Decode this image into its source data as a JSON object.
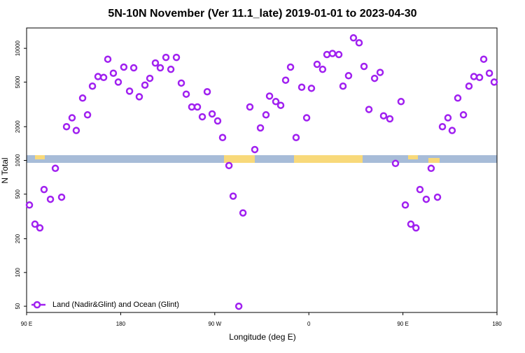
{
  "chart_data": {
    "type": "scatter",
    "title": "5N-10N November (Ver 11.1_late)   2019-01-01 to 2023-04-30",
    "x_label": "Longitude (deg E)",
    "y_label": "N Total",
    "log_y": true,
    "legend_position": "lower left",
    "xlim": [
      90,
      540
    ],
    "ylim": [
      44,
      15200
    ],
    "xticks": [
      {
        "value": 90,
        "label": "90 E"
      },
      180,
      {
        "value": 270,
        "label": "90 W"
      },
      {
        "value": 360,
        "label": "0"
      },
      {
        "value": 450,
        "label": "90 E"
      },
      {
        "value": 540,
        "label": "180"
      }
    ],
    "yticks": [
      50,
      100,
      200,
      500,
      1000,
      2000,
      5000,
      10000
    ],
    "series": [
      {
        "name": "Land (Nadir&Glint) and Ocean (Glint)",
        "color": "#a020f0",
        "x": [
          92.7,
          98,
          102.7,
          106.7,
          112.8,
          117.5,
          123.5,
          128.2,
          133.5,
          137.5,
          143.6,
          148.3,
          153,
          158.3,
          163.7,
          167.7,
          173,
          177.7,
          183,
          188.5,
          192.5,
          197.8,
          203.2,
          207.9,
          213.2,
          217.9,
          223.3,
          228,
          233.3,
          238,
          242.7,
          248,
          253.4,
          258.1,
          262.8,
          267.5,
          272.8,
          277.5,
          283.6,
          287.6,
          293,
          297,
          303.6,
          308.3,
          313.7,
          319,
          322.4,
          328.4,
          333.1,
          337.8,
          342.5,
          347.8,
          353.2,
          357.9,
          362.5,
          367.9,
          373.2,
          377.3,
          382.6,
          388.7,
          392.7,
          398,
          402.7,
          408.1,
          412.8,
          417.5,
          422.9,
          428.2,
          431.5,
          437.5,
          442.9,
          448.2,
          452.3,
          457.6,
          462.5,
          466.3,
          472.3,
          477,
          483.1,
          487.8,
          493.1,
          497.1,
          502.5,
          507.9,
          513.2,
          517.9,
          523.3,
          527.3,
          532.7,
          537.3
        ],
        "values": [
          400,
          270,
          250,
          550,
          450,
          850,
          470,
          2000,
          2400,
          1850,
          3600,
          2550,
          4600,
          5600,
          5500,
          8000,
          6000,
          5000,
          6800,
          4150,
          6700,
          3700,
          4700,
          5400,
          7400,
          6700,
          8300,
          6500,
          8300,
          4900,
          3900,
          3000,
          3000,
          2450,
          4100,
          2600,
          2250,
          1600,
          900,
          480,
          50,
          340,
          3000,
          1250,
          1950,
          2550,
          3750,
          3350,
          3100,
          5200,
          6800,
          1600,
          4500,
          2400,
          4400,
          7200,
          6500,
          8800,
          9000,
          8800,
          4600,
          5700,
          12400,
          11200,
          6900,
          2850,
          5400,
          6100,
          2500,
          2350,
          940,
          3350,
          400,
          270,
          250,
          550,
          450,
          850,
          470,
          2000,
          2400,
          1850,
          3600,
          2550,
          4600,
          5600,
          5500,
          8000,
          6000,
          5000
        ]
      }
    ]
  }
}
